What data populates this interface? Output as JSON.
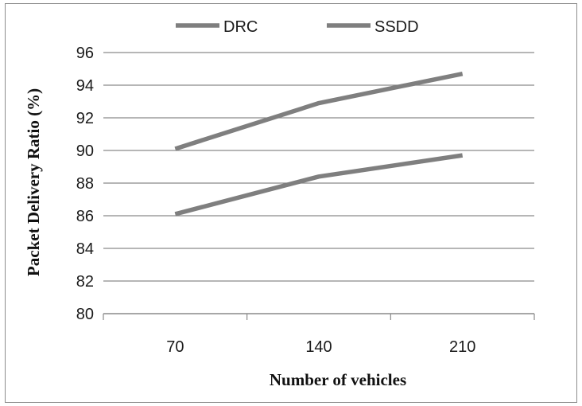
{
  "chart_data": {
    "type": "line",
    "categories": [
      "70",
      "140",
      "210"
    ],
    "series": [
      {
        "name": "DRC",
        "values": [
          86.1,
          88.4,
          89.7
        ],
        "color": "#7f7f7f"
      },
      {
        "name": "SSDD",
        "values": [
          90.1,
          92.9,
          94.7
        ],
        "color": "#7f7f7f"
      }
    ],
    "xlabel": "Number of vehicles",
    "ylabel": "Packet Delivery Ratio (%)",
    "ylim": [
      80,
      96
    ],
    "yticks": [
      "80",
      "82",
      "84",
      "86",
      "88",
      "90",
      "92",
      "94",
      "96"
    ],
    "grid": true,
    "legend": "top"
  }
}
